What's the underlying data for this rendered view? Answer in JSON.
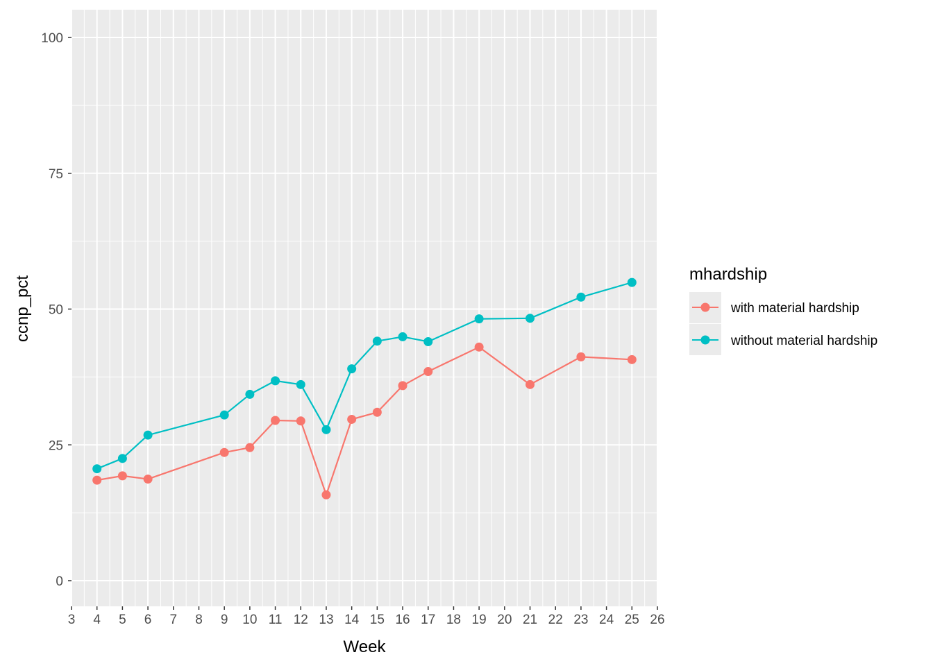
{
  "chart_data": {
    "type": "line",
    "xlabel": "Week",
    "ylabel": "ccnp_pct",
    "xlim": [
      3,
      26
    ],
    "ylim": [
      0,
      100
    ],
    "x_ticks": [
      3,
      4,
      5,
      6,
      7,
      8,
      9,
      10,
      11,
      12,
      13,
      14,
      15,
      16,
      17,
      18,
      19,
      20,
      21,
      22,
      23,
      24,
      25,
      26
    ],
    "y_ticks": [
      0,
      25,
      50,
      75,
      100
    ],
    "grid": true,
    "legend": {
      "title": "mhardship",
      "position": "right"
    },
    "series": [
      {
        "name": "with material hardship",
        "color": "#F8766D",
        "x": [
          4,
          5,
          6,
          9,
          10,
          11,
          12,
          13,
          14,
          15,
          16,
          17,
          19,
          21,
          23,
          25
        ],
        "values": [
          18.5,
          19.3,
          18.7,
          23.6,
          24.5,
          29.5,
          29.4,
          15.8,
          29.7,
          31.0,
          35.9,
          38.5,
          43.0,
          36.1,
          41.2,
          40.7
        ]
      },
      {
        "name": "without material hardship",
        "color": "#00BFC4",
        "x": [
          4,
          5,
          6,
          9,
          10,
          11,
          12,
          13,
          14,
          15,
          16,
          17,
          19,
          21,
          23,
          25
        ],
        "values": [
          20.6,
          22.5,
          26.8,
          30.5,
          34.3,
          36.8,
          36.1,
          27.8,
          39.0,
          44.1,
          44.9,
          44.0,
          48.2,
          48.3,
          52.2,
          54.9
        ]
      }
    ]
  }
}
